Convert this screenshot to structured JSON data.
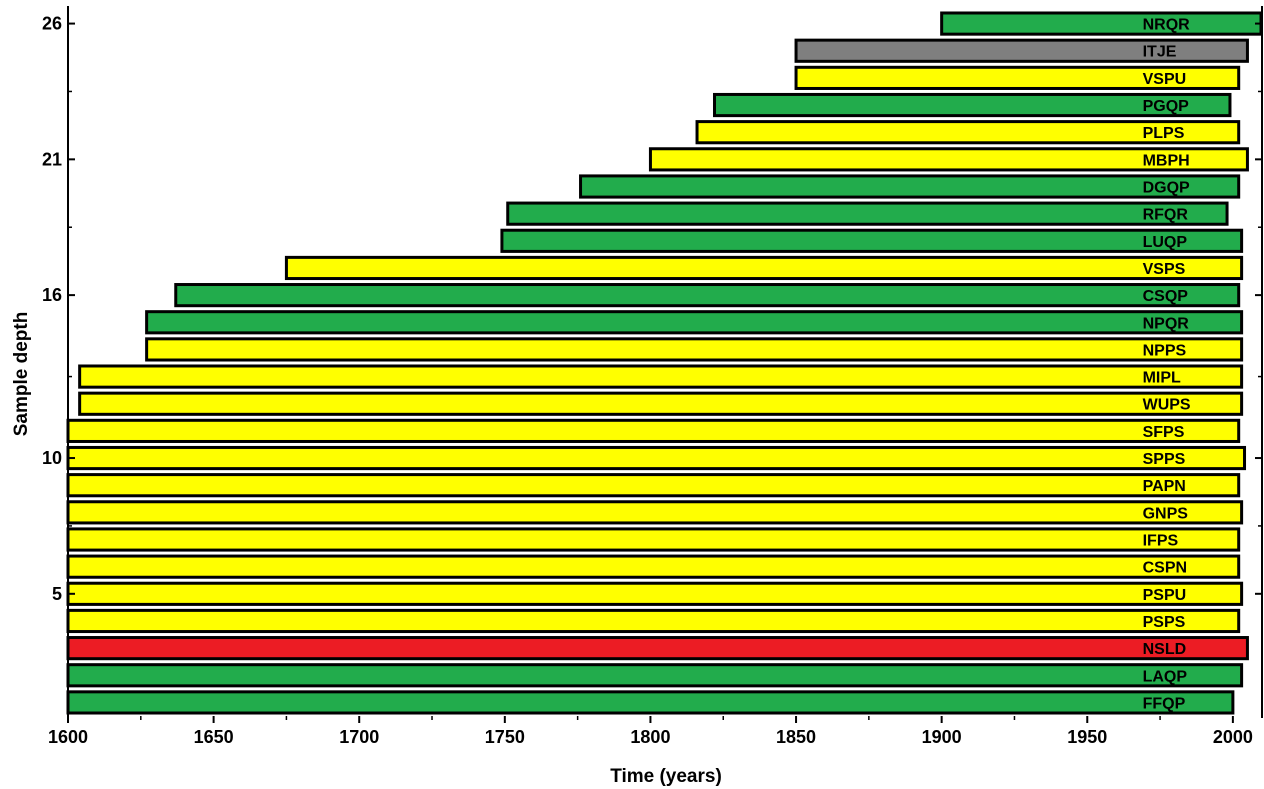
{
  "chart_data": {
    "type": "bar",
    "orientation": "horizontal-range",
    "xlabel": "Time (years)",
    "ylabel": "Sample depth",
    "xlim": [
      1600,
      2010
    ],
    "ylim": [
      0.5,
      26.5
    ],
    "xticks": [
      1600,
      1650,
      1700,
      1750,
      1800,
      1850,
      1900,
      1950,
      2000
    ],
    "yticks": [
      5,
      10,
      16,
      21,
      26
    ],
    "colors": {
      "green": "#22ac4c",
      "yellow": "#ffff00",
      "red": "#ec1c24",
      "gray": "#7f7f7f"
    },
    "series": [
      {
        "name": "FFQP",
        "depth": 1,
        "start": 1600,
        "end": 2000,
        "color": "green"
      },
      {
        "name": "LAQP",
        "depth": 2,
        "start": 1600,
        "end": 2003,
        "color": "green"
      },
      {
        "name": "NSLD",
        "depth": 3,
        "start": 1600,
        "end": 2005,
        "color": "red"
      },
      {
        "name": "PSPS",
        "depth": 4,
        "start": 1600,
        "end": 2002,
        "color": "yellow"
      },
      {
        "name": "PSPU",
        "depth": 5,
        "start": 1600,
        "end": 2003,
        "color": "yellow"
      },
      {
        "name": "CSPN",
        "depth": 6,
        "start": 1600,
        "end": 2002,
        "color": "yellow"
      },
      {
        "name": "IFPS",
        "depth": 7,
        "start": 1600,
        "end": 2002,
        "color": "yellow"
      },
      {
        "name": "GNPS",
        "depth": 8,
        "start": 1600,
        "end": 2003,
        "color": "yellow"
      },
      {
        "name": "PAPN",
        "depth": 9,
        "start": 1600,
        "end": 2002,
        "color": "yellow"
      },
      {
        "name": "SPPS",
        "depth": 10,
        "start": 1600,
        "end": 2004,
        "color": "yellow"
      },
      {
        "name": "SFPS",
        "depth": 11,
        "start": 1600,
        "end": 2002,
        "color": "yellow"
      },
      {
        "name": "WUPS",
        "depth": 12,
        "start": 1604,
        "end": 2003,
        "color": "yellow"
      },
      {
        "name": "MIPL",
        "depth": 13,
        "start": 1604,
        "end": 2003,
        "color": "yellow"
      },
      {
        "name": "NPPS",
        "depth": 14,
        "start": 1627,
        "end": 2003,
        "color": "yellow"
      },
      {
        "name": "NPQR",
        "depth": 15,
        "start": 1627,
        "end": 2003,
        "color": "green"
      },
      {
        "name": "CSQP",
        "depth": 16,
        "start": 1637,
        "end": 2002,
        "color": "green"
      },
      {
        "name": "VSPS",
        "depth": 17,
        "start": 1675,
        "end": 2003,
        "color": "yellow"
      },
      {
        "name": "LUQP",
        "depth": 18,
        "start": 1749,
        "end": 2003,
        "color": "green"
      },
      {
        "name": "RFQR",
        "depth": 19,
        "start": 1751,
        "end": 1998,
        "color": "green"
      },
      {
        "name": "DGQP",
        "depth": 20,
        "start": 1776,
        "end": 2002,
        "color": "green"
      },
      {
        "name": "MBPH",
        "depth": 21,
        "start": 1800,
        "end": 2005,
        "color": "yellow"
      },
      {
        "name": "PLPS",
        "depth": 22,
        "start": 1816,
        "end": 2002,
        "color": "yellow"
      },
      {
        "name": "PGQP",
        "depth": 23,
        "start": 1822,
        "end": 1999,
        "color": "green"
      },
      {
        "name": "VSPU",
        "depth": 24,
        "start": 1850,
        "end": 2002,
        "color": "yellow"
      },
      {
        "name": "ITJE",
        "depth": 25,
        "start": 1850,
        "end": 2005,
        "color": "gray"
      },
      {
        "name": "NRQR",
        "depth": 26,
        "start": 1900,
        "end": 2010,
        "color": "green"
      }
    ]
  }
}
